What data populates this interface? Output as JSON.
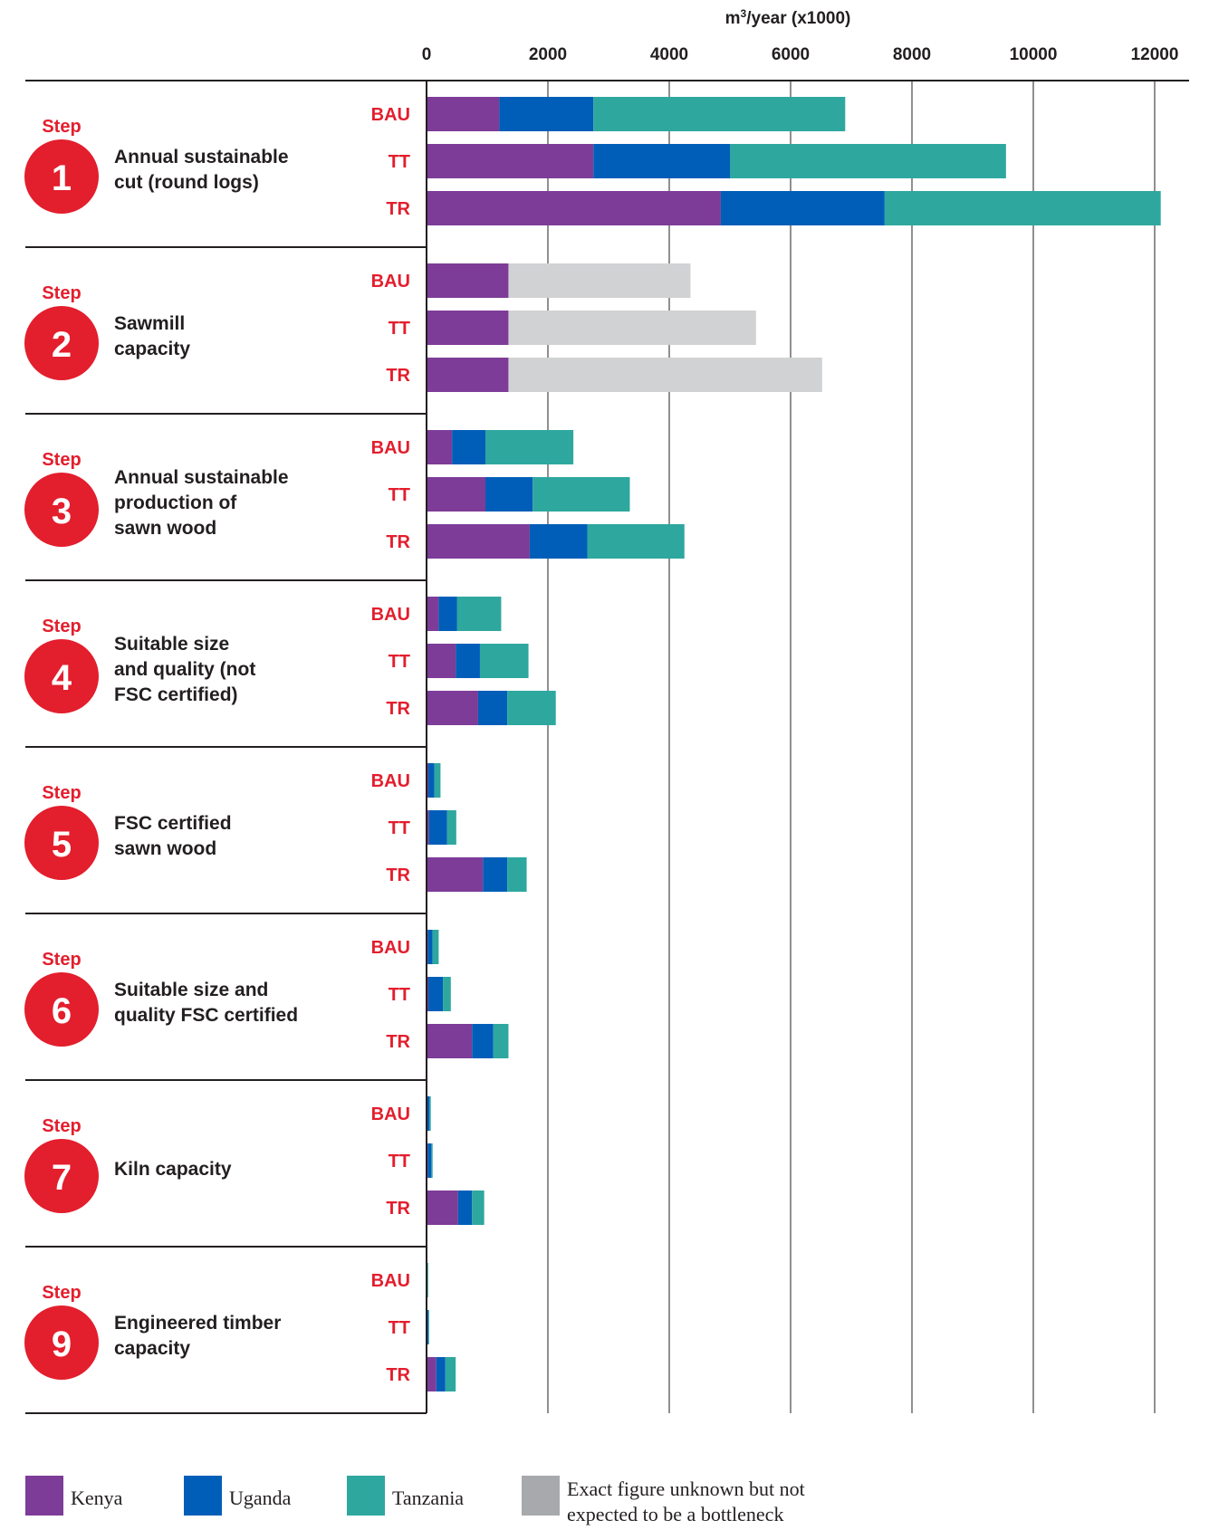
{
  "chart_data": {
    "type": "bar",
    "orientation": "horizontal",
    "stacked": true,
    "xlabel": "m³/year (x1000)",
    "xlim": [
      0,
      12000
    ],
    "xticks": [
      0,
      2000,
      4000,
      6000,
      8000,
      10000,
      12000
    ],
    "tick_labels": [
      "0",
      "2000",
      "4000",
      "6000",
      "8000",
      "10000",
      "12000"
    ],
    "grid": "vertical",
    "step_word": "Step",
    "scenarios": [
      "BAU",
      "TT",
      "TR"
    ],
    "series": [
      {
        "name": "Kenya",
        "color": "#7d3c98"
      },
      {
        "name": "Uganda",
        "color": "#005eb8"
      },
      {
        "name": "Tanzania",
        "color": "#2ea79f"
      },
      {
        "name": "Exact figure unknown but not expected to be a bottleneck",
        "color": "#d1d2d4"
      }
    ],
    "steps": [
      {
        "number": "1",
        "label": [
          "Annual sustainable",
          "cut (round logs)"
        ],
        "values": [
          [
            1200,
            1550,
            4150,
            0
          ],
          [
            2750,
            2250,
            4550,
            0
          ],
          [
            4850,
            2700,
            4550,
            0
          ]
        ]
      },
      {
        "number": "2",
        "label": [
          "Sawmill",
          "capacity"
        ],
        "values": [
          [
            1350,
            0,
            0,
            3000
          ],
          [
            1350,
            0,
            0,
            4080
          ],
          [
            1350,
            0,
            0,
            5170
          ]
        ]
      },
      {
        "number": "3",
        "label": [
          "Annual sustainable",
          "production of",
          "sawn wood"
        ],
        "values": [
          [
            420,
            550,
            1450,
            0
          ],
          [
            970,
            780,
            1600,
            0
          ],
          [
            1700,
            950,
            1600,
            0
          ]
        ]
      },
      {
        "number": "4",
        "label": [
          "Suitable size",
          "and quality (not",
          "FSC certified)"
        ],
        "values": [
          [
            200,
            300,
            730,
            0
          ],
          [
            480,
            400,
            800,
            0
          ],
          [
            850,
            480,
            800,
            0
          ]
        ]
      },
      {
        "number": "5",
        "label": [
          "FSC certified",
          "sawn wood"
        ],
        "values": [
          [
            30,
            100,
            100,
            0
          ],
          [
            40,
            300,
            150,
            0
          ],
          [
            930,
            400,
            320,
            0
          ]
        ]
      },
      {
        "number": "6",
        "label": [
          "Suitable size and",
          "quality FSC certified"
        ],
        "values": [
          [
            20,
            80,
            100,
            0
          ],
          [
            30,
            240,
            130,
            0
          ],
          [
            750,
            350,
            250,
            0
          ]
        ]
      },
      {
        "number": "7",
        "label": [
          "Kiln capacity"
        ],
        "values": [
          [
            10,
            40,
            20,
            0
          ],
          [
            20,
            60,
            20,
            0
          ],
          [
            520,
            230,
            200,
            0
          ]
        ]
      },
      {
        "number": "9",
        "label": [
          "Engineered timber",
          "capacity"
        ],
        "values": [
          [
            5,
            10,
            5,
            0
          ],
          [
            10,
            20,
            10,
            0
          ],
          [
            160,
            150,
            170,
            0
          ]
        ]
      }
    ],
    "legend_position": "bottom"
  }
}
